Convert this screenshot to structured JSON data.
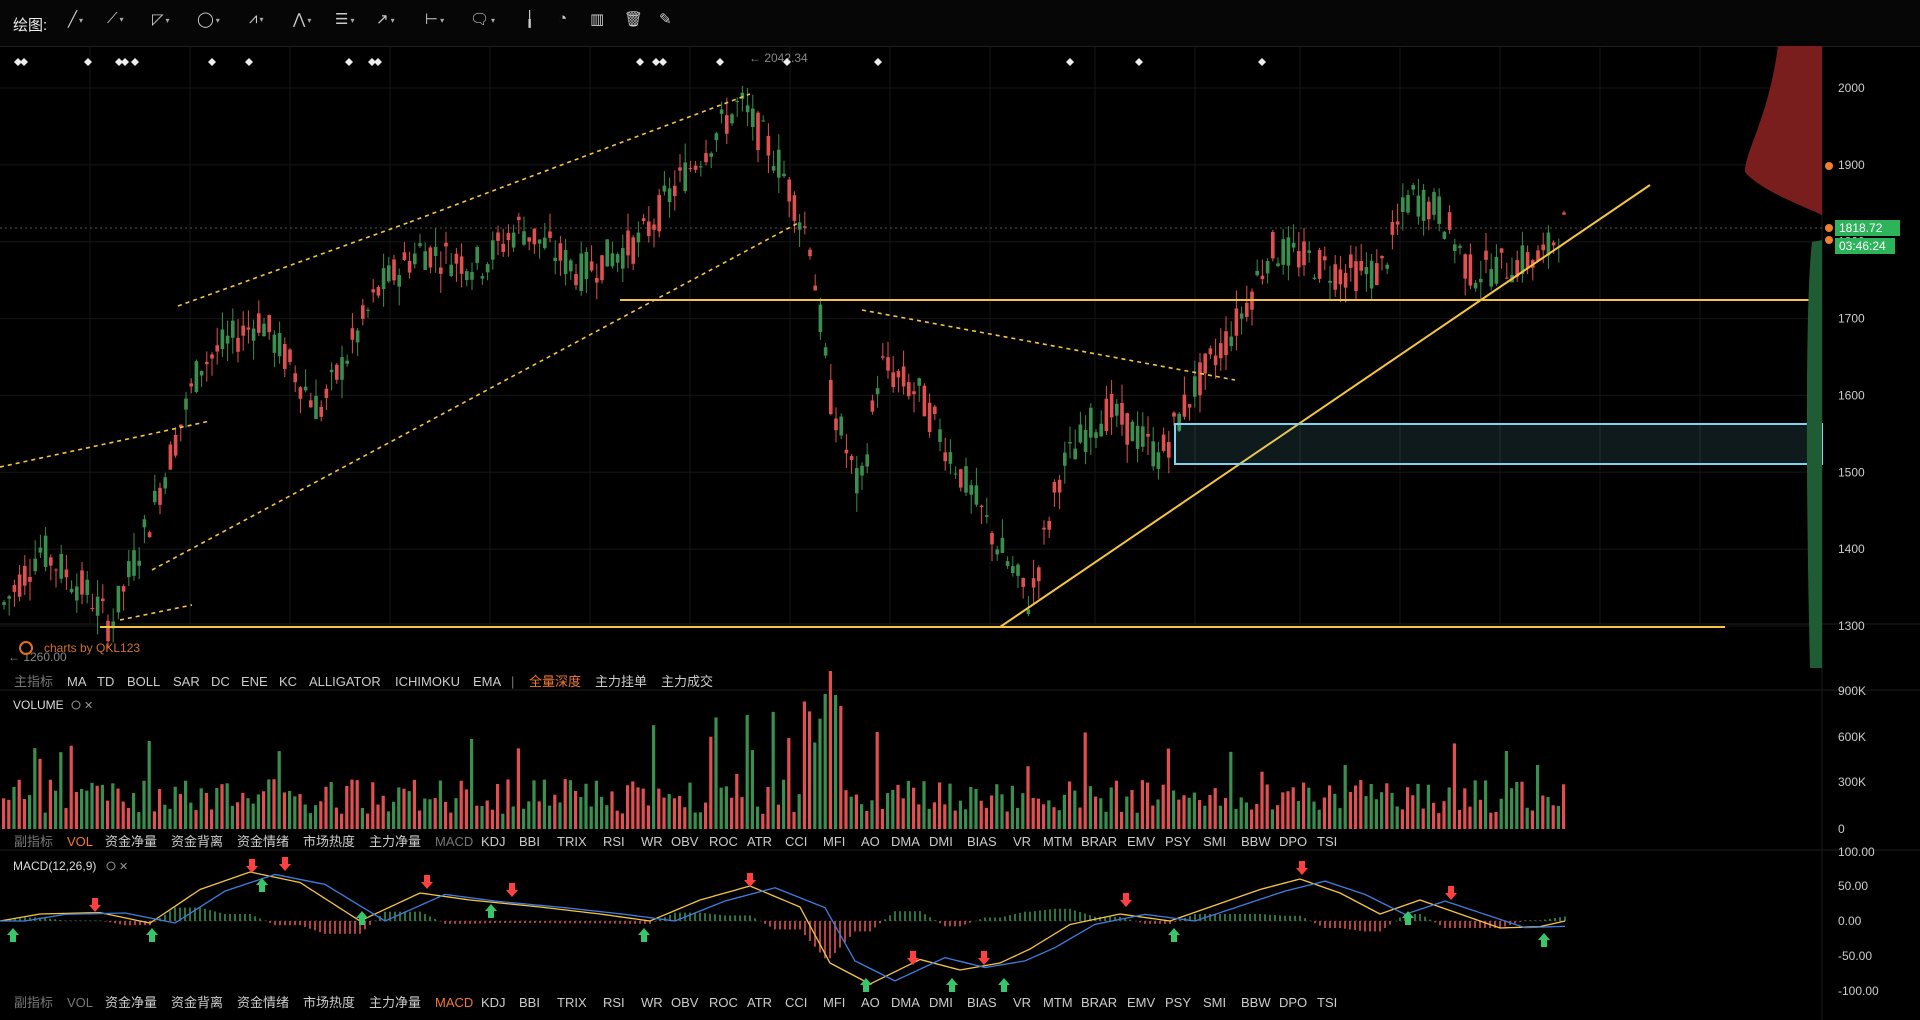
{
  "toolbar": {
    "label": "绘图:",
    "tools": [
      {
        "icon": "line-tool-icon",
        "glyph": "╱",
        "dd": "▾"
      },
      {
        "icon": "ray-tool-icon",
        "glyph": "⟋",
        "dd": "▾"
      },
      {
        "icon": "polygon-tool-icon",
        "glyph": "◸",
        "dd": "▾"
      },
      {
        "icon": "ellipse-tool-icon",
        "glyph": "◯",
        "dd": "▾"
      },
      {
        "icon": "wave-tool-icon",
        "glyph": "⩘",
        "dd": "▾"
      },
      {
        "icon": "pattern-tool-icon",
        "glyph": "⋀",
        "dd": "▾"
      },
      {
        "icon": "fibonacci-tool-icon",
        "glyph": "☰",
        "dd": "▾"
      },
      {
        "icon": "arrow-tool-icon",
        "glyph": "↗",
        "dd": "▾"
      },
      {
        "icon": "measure-tool-icon",
        "glyph": "⊢",
        "dd": "▾"
      },
      {
        "icon": "comment-tool-icon",
        "glyph": "🗨",
        "dd": "▾"
      },
      {
        "icon": "candle-chart-icon",
        "glyph": "╽",
        "dd": ""
      },
      {
        "icon": "indicator-chart-icon",
        "glyph": "◔",
        "dd": ""
      },
      {
        "icon": "bar-chart-icon",
        "glyph": "▥",
        "dd": ""
      },
      {
        "icon": "trash-icon",
        "glyph": "🗑",
        "dd": ""
      },
      {
        "icon": "pen-lock-icon",
        "glyph": "✎",
        "dd": ""
      }
    ]
  },
  "main_chart": {
    "price_ticks": [
      "2000",
      "1900",
      "1800",
      "1700",
      "1600",
      "1500",
      "1400",
      "1300"
    ],
    "current_price": "1818.72",
    "countdown": "03:46:24",
    "high_label": "← 2042.34",
    "low_label": "← 1260.00",
    "watermark": "charts by QKL123",
    "colors": {
      "up": "#3a8f4f",
      "down": "#e05050",
      "line": "#f5c542",
      "zone": "#7fd3f0"
    }
  },
  "main_tabs": [
    {
      "label": "主指标",
      "active": false,
      "dim": true
    },
    {
      "label": "MA",
      "active": false
    },
    {
      "label": "TD",
      "active": false
    },
    {
      "label": "BOLL",
      "active": false
    },
    {
      "label": "SAR",
      "active": false
    },
    {
      "label": "DC",
      "active": false
    },
    {
      "label": "ENE",
      "active": false
    },
    {
      "label": "KC",
      "active": false
    },
    {
      "label": "ALLIGATOR",
      "active": false
    },
    {
      "label": "ICHIMOKU",
      "active": false
    },
    {
      "label": "EMA",
      "active": false
    },
    {
      "label": "|",
      "active": false,
      "dim": true
    },
    {
      "label": "全量深度",
      "active": true
    },
    {
      "label": "主力挂单",
      "active": false
    },
    {
      "label": "主力成交",
      "active": false
    }
  ],
  "volume": {
    "title": "VOLUME",
    "ticks": [
      "900K",
      "600K",
      "300K",
      "0"
    ]
  },
  "sub_tabs_1": [
    {
      "label": "副指标",
      "dim": true
    },
    {
      "label": "VOL",
      "active": true
    },
    {
      "label": "资金净量"
    },
    {
      "label": "资金背离"
    },
    {
      "label": "资金情绪"
    },
    {
      "label": "市场热度"
    },
    {
      "label": "主力净量"
    },
    {
      "label": "MACD",
      "dim": true
    },
    {
      "label": "KDJ"
    },
    {
      "label": "BBI"
    },
    {
      "label": "TRIX"
    },
    {
      "label": "RSI"
    },
    {
      "label": "WR"
    },
    {
      "label": "OBV"
    },
    {
      "label": "ROC"
    },
    {
      "label": "ATR"
    },
    {
      "label": "CCI"
    },
    {
      "label": "MFI"
    },
    {
      "label": "AO"
    },
    {
      "label": "DMA"
    },
    {
      "label": "DMI"
    },
    {
      "label": "BIAS"
    },
    {
      "label": "VR"
    },
    {
      "label": "MTM"
    },
    {
      "label": "BRAR"
    },
    {
      "label": "EMV"
    },
    {
      "label": "PSY"
    },
    {
      "label": "SMI"
    },
    {
      "label": "BBW"
    },
    {
      "label": "DPO"
    },
    {
      "label": "TSI"
    }
  ],
  "macd": {
    "title": "MACD(12,26,9)",
    "ticks": [
      "100.00",
      "50.00",
      "0.00",
      "-50.00",
      "-100.00"
    ]
  },
  "sub_tabs_2": [
    {
      "label": "副指标",
      "dim": true
    },
    {
      "label": "VOL",
      "dim": true
    },
    {
      "label": "资金净量"
    },
    {
      "label": "资金背离"
    },
    {
      "label": "资金情绪"
    },
    {
      "label": "市场热度"
    },
    {
      "label": "主力净量"
    },
    {
      "label": "MACD",
      "active": true
    },
    {
      "label": "KDJ"
    },
    {
      "label": "BBI"
    },
    {
      "label": "TRIX"
    },
    {
      "label": "RSI"
    },
    {
      "label": "WR"
    },
    {
      "label": "OBV"
    },
    {
      "label": "ROC"
    },
    {
      "label": "ATR"
    },
    {
      "label": "CCI"
    },
    {
      "label": "MFI"
    },
    {
      "label": "AO"
    },
    {
      "label": "DMA"
    },
    {
      "label": "DMI"
    },
    {
      "label": "BIAS"
    },
    {
      "label": "VR"
    },
    {
      "label": "MTM"
    },
    {
      "label": "BRAR"
    },
    {
      "label": "EMV"
    },
    {
      "label": "PSY"
    },
    {
      "label": "SMI"
    },
    {
      "label": "BBW"
    },
    {
      "label": "DPO"
    },
    {
      "label": "TSI"
    }
  ]
}
